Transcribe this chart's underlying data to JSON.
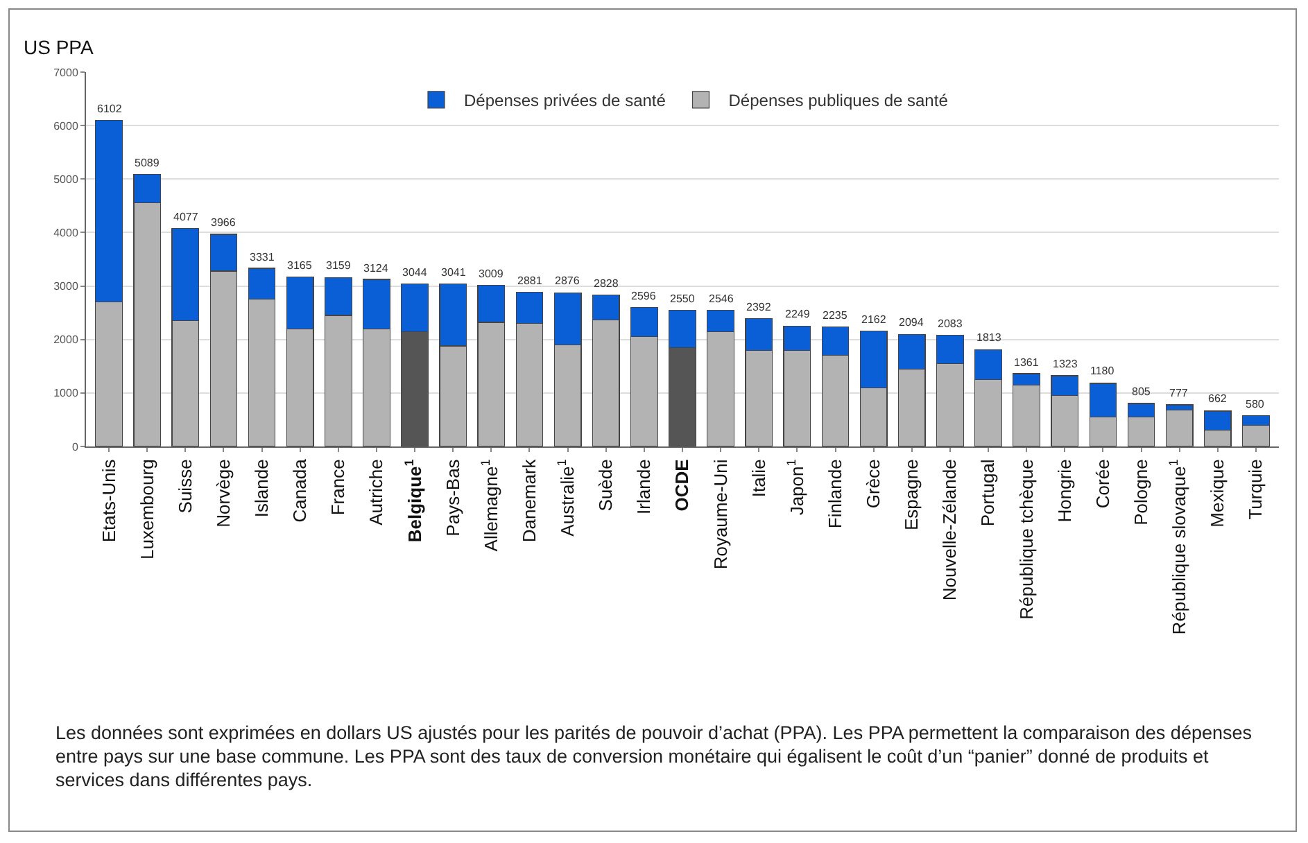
{
  "chart_data": {
    "type": "bar",
    "stacked": true,
    "ylabel": "US PPA",
    "categories": [
      "Etats-Unis",
      "Luxembourg",
      "Suisse",
      "Norvège",
      "Islande",
      "Canada",
      "France",
      "Autriche",
      "Belgique$^{1}$",
      "Pays-Bas",
      "Allemagne$^{1}$",
      "Danemark",
      "Australie$^{1}$",
      "Suède",
      "Irlande",
      "OCDE",
      "Royaume-Uni",
      "Italie",
      "Japon$^{1}$",
      "Finlande",
      "Grèce",
      "Espagne",
      "Nouvelle-Zélande",
      "Portugal",
      "République tchèque",
      "Hongrie",
      "Corée",
      "Pologne",
      "République slovaque$^{1}$",
      "Mexique",
      "Turquie"
    ],
    "series": [
      {
        "name": "Dépenses publiques de santé",
        "color": "#b3b3b3",
        "colors": [
          "#b3b3b3",
          "#b3b3b3",
          "#b3b3b3",
          "#b3b3b3",
          "#b3b3b3",
          "#b3b3b3",
          "#b3b3b3",
          "#b3b3b3",
          "#555555",
          "#b3b3b3",
          "#b3b3b3",
          "#b3b3b3",
          "#b3b3b3",
          "#b3b3b3",
          "#b3b3b3",
          "#555555",
          "#b3b3b3",
          "#b3b3b3",
          "#b3b3b3",
          "#b3b3b3",
          "#b3b3b3",
          "#b3b3b3",
          "#b3b3b3",
          "#b3b3b3",
          "#b3b3b3",
          "#b3b3b3",
          "#b3b3b3",
          "#b3b3b3",
          "#b3b3b3",
          "#b3b3b3",
          "#b3b3b3"
        ],
        "values": [
          2700,
          4560,
          2350,
          3280,
          2750,
          2200,
          2450,
          2200,
          2150,
          1880,
          2320,
          2300,
          1900,
          2370,
          2050,
          1850,
          2150,
          1800,
          1800,
          1700,
          1100,
          1450,
          1550,
          1250,
          1150,
          950,
          550,
          550,
          680,
          300,
          400
        ]
      },
      {
        "name": "Dépenses privées de santé",
        "color": "#0a5fd6",
        "values": [
          3402,
          529,
          1727,
          686,
          581,
          965,
          709,
          924,
          894,
          1161,
          689,
          581,
          976,
          458,
          546,
          700,
          396,
          592,
          449,
          535,
          1062,
          644,
          533,
          563,
          211,
          373,
          630,
          255,
          97,
          362,
          180
        ]
      }
    ],
    "totals": [
      "6102",
      "5089",
      "4077",
      "3966",
      "3331",
      "3165",
      "3159",
      "3124",
      "3044",
      "3041",
      "3009",
      "2881",
      "2876",
      "2828",
      "2596",
      "2550",
      "2546",
      "2392",
      "2249",
      "2235",
      "2162",
      "2094",
      "2083",
      "1813",
      "1361",
      "1323",
      "1180",
      "805",
      "777",
      "662",
      "580"
    ],
    "ylim": [
      0,
      7000
    ],
    "yticks": [
      0,
      1000,
      2000,
      3000,
      4000,
      5000,
      6000,
      7000
    ],
    "grid": "y",
    "legend": "top",
    "annotations": [
      "Les données sont exprimées en dollars US ajustés pour les parités de pouvoir d’achat (PPA). Les PPA permettent la comparaison des dépenses entre pays sur une base commune. Les PPA sont des taux de conversion monétaire qui égalisent le coût d’un “panier” donné de produits et services dans différentes pays."
    ]
  }
}
